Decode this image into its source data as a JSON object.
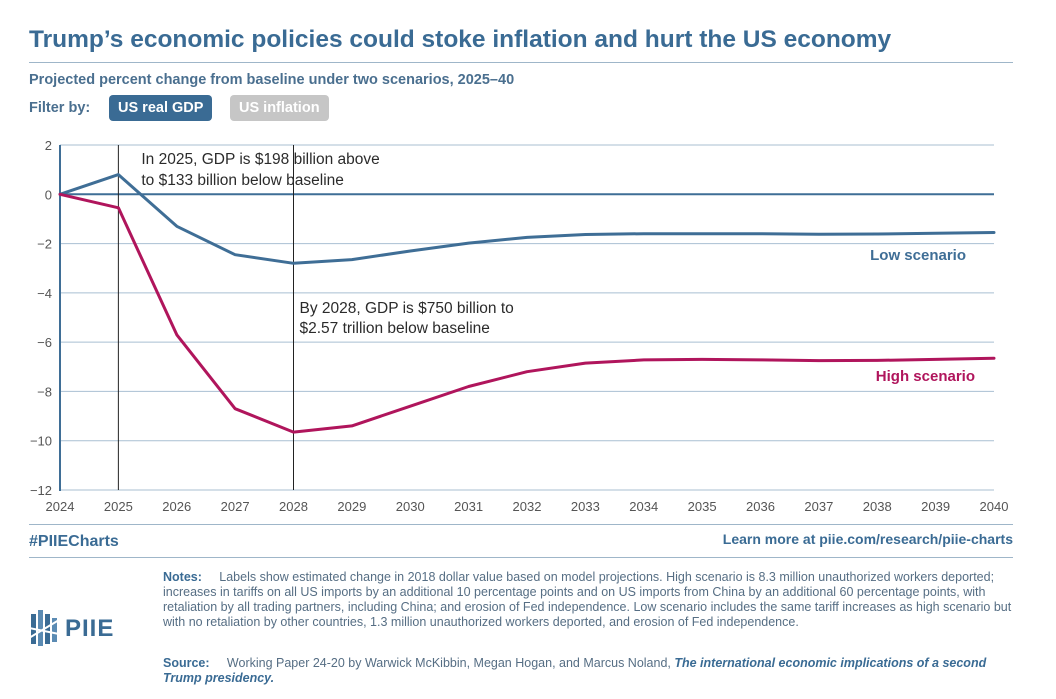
{
  "title": "Trump’s economic policies could stoke inflation and hurt the US economy",
  "subtitle": "Projected percent change from baseline under two scenarios, 2025–40",
  "filter": {
    "label": "Filter by:",
    "options": [
      "US real GDP",
      "US inflation"
    ],
    "selected": "US real GDP"
  },
  "colors": {
    "brand": "#3a6b94",
    "low": "#3f6e96",
    "high": "#b0155c",
    "inactive": "#c6c6c6"
  },
  "chart_data": {
    "type": "line",
    "x": [
      2024,
      2025,
      2026,
      2027,
      2028,
      2029,
      2030,
      2031,
      2032,
      2033,
      2034,
      2035,
      2036,
      2037,
      2038,
      2039,
      2040
    ],
    "xlim": [
      2024,
      2040
    ],
    "ylim": [
      -12,
      2
    ],
    "yticks": [
      2,
      0,
      -2,
      -4,
      -6,
      -8,
      -10,
      -12
    ],
    "yticklabels": [
      "2",
      "0",
      "−2",
      "−4",
      "−6",
      "−8",
      "−10",
      "−12"
    ],
    "grid": true,
    "series": [
      {
        "name": "Low scenario",
        "color": "#3f6e96",
        "values": [
          0,
          0.8,
          -1.3,
          -2.45,
          -2.8,
          -2.65,
          -2.3,
          -1.98,
          -1.75,
          -1.63,
          -1.6,
          -1.6,
          -1.6,
          -1.62,
          -1.61,
          -1.58,
          -1.55
        ]
      },
      {
        "name": "High scenario",
        "color": "#b0155c",
        "values": [
          0,
          -0.55,
          -5.7,
          -8.7,
          -9.65,
          -9.4,
          -8.6,
          -7.8,
          -7.2,
          -6.85,
          -6.72,
          -6.7,
          -6.72,
          -6.75,
          -6.74,
          -6.7,
          -6.65
        ]
      }
    ],
    "annotations": [
      {
        "x": 2025,
        "lines": [
          "In 2025, GDP is $198 billion above",
          "to $133 billion below baseline"
        ]
      },
      {
        "x": 2028,
        "lines": [
          "By 2028, GDP is $750 billion to",
          "$2.57 trillion below baseline"
        ]
      }
    ]
  },
  "footer": {
    "hashtag": "#PIIECharts",
    "learn_more": "Learn more at piie.com/research/piie-charts",
    "notes_label": "Notes:",
    "notes_text": "Labels show estimated change in 2018 dollar value based on model projections. High scenario is 8.3 million unauthorized workers deported; increases in tariffs on all US imports by an additional 10 percentage points and on US imports from China by an additional 60 percentage points, with retaliation by all trading partners, including China; and erosion of Fed independence. Low scenario includes the same tariff increases as high scenario but with no retaliation by other countries, 1.3 million unauthorized workers deported, and erosion of Fed independence.",
    "source_label": "Source:",
    "source_text": "Working Paper 24-20 by Warwick McKibbin, Megan Hogan, and Marcus Noland, ",
    "source_title": "The international economic implications of a second Trump presidency."
  },
  "logo": {
    "text": "PIIE"
  }
}
